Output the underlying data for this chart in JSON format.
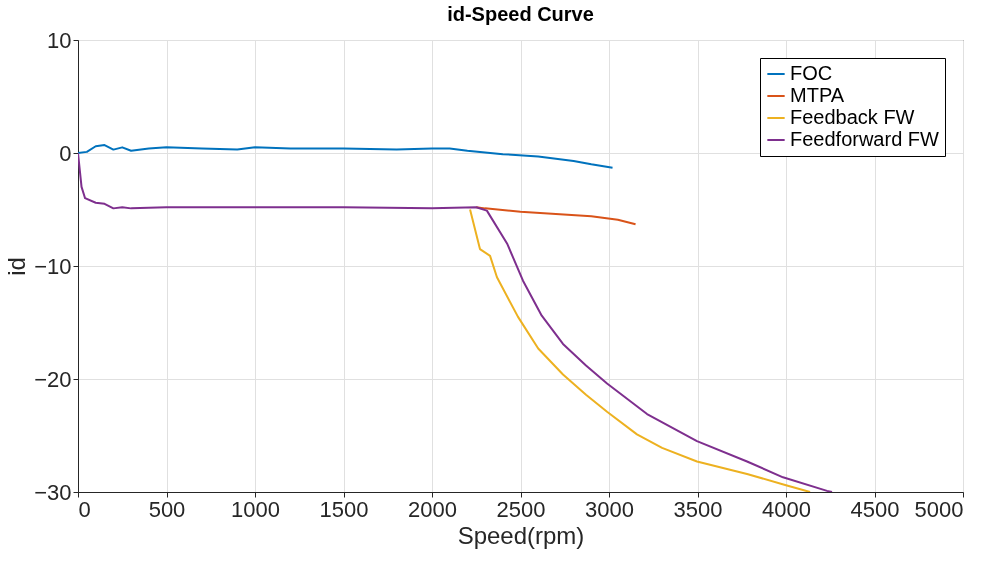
{
  "chart_data": {
    "type": "line",
    "title": "id-Speed Curve",
    "xlabel": "Speed(rpm)",
    "ylabel": "id",
    "xlim": [
      0,
      5000
    ],
    "xticks": [
      0,
      500,
      1000,
      1500,
      2000,
      2500,
      3000,
      3500,
      4000,
      4500,
      5000
    ],
    "ylim": [
      -30,
      10
    ],
    "yticks": [
      -30,
      -20,
      -10,
      0,
      10
    ],
    "grid": true,
    "legend": "top right",
    "marker": "none",
    "line_style": "solid",
    "series": [
      {
        "name": "FOC",
        "color": "#0072bd",
        "x": [
          0,
          50,
          100,
          150,
          200,
          250,
          300,
          400,
          500,
          700,
          900,
          1000,
          1200,
          1500,
          1800,
          2000,
          2100,
          2200,
          2400,
          2600,
          2800,
          2900,
          3020
        ],
        "values": [
          0,
          0.1,
          0.6,
          0.7,
          0.3,
          0.5,
          0.2,
          0.4,
          0.5,
          0.4,
          0.3,
          0.5,
          0.4,
          0.4,
          0.3,
          0.4,
          0.4,
          0.2,
          -0.1,
          -0.3,
          -0.7,
          -1.0,
          -1.3
        ]
      },
      {
        "name": "MTPA",
        "color": "#d95319",
        "x": [
          2250,
          2300,
          2500,
          2700,
          2900,
          3050,
          3150
        ],
        "values": [
          -4.8,
          -4.9,
          -5.2,
          -5.4,
          -5.6,
          -5.9,
          -6.3
        ]
      },
      {
        "name": "Feedback FW",
        "color": "#edb120",
        "x": [
          2215,
          2271,
          2328,
          2367,
          2486,
          2600,
          2740,
          2870,
          2989,
          3158,
          3300,
          3497,
          3780,
          4000,
          4136
        ],
        "values": [
          -5.0,
          -8.5,
          -9.1,
          -11,
          -14.5,
          -17.3,
          -19.6,
          -21.4,
          -22.9,
          -24.9,
          -26.1,
          -27.3,
          -28.4,
          -29.4,
          -30
        ]
      },
      {
        "name": "Feedforward FW",
        "color": "#7e2f8e",
        "x": [
          0,
          20,
          40,
          100,
          150,
          200,
          250,
          300,
          500,
          1000,
          1500,
          2000,
          2250,
          2310,
          2424,
          2514,
          2620,
          2740,
          2870,
          2989,
          3215,
          3497,
          3780,
          3983,
          4232,
          4260
        ],
        "values": [
          0,
          -3,
          -4,
          -4.4,
          -4.5,
          -4.9,
          -4.8,
          -4.9,
          -4.8,
          -4.8,
          -4.8,
          -4.9,
          -4.8,
          -5.1,
          -8.0,
          -11.3,
          -14.4,
          -16.9,
          -18.8,
          -20.4,
          -23.1,
          -25.5,
          -27.3,
          -28.7,
          -29.9,
          -30
        ]
      }
    ]
  }
}
